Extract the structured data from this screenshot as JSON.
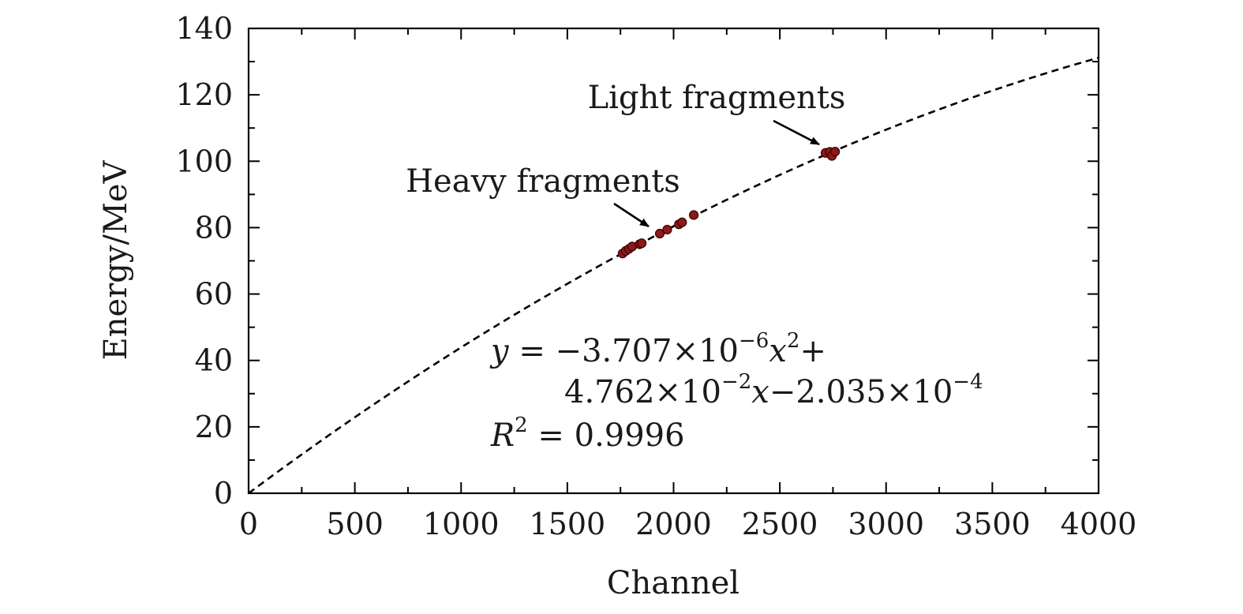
{
  "chart_data": {
    "type": "scatter",
    "xlabel": "Channel",
    "ylabel": "Energy/MeV",
    "xlim": [
      0,
      4000
    ],
    "ylim": [
      0,
      140
    ],
    "xticks": [
      "0",
      "500",
      "1000",
      "1500",
      "2000",
      "2500",
      "3000",
      "3500",
      "4000"
    ],
    "yticks": [
      "0",
      "20",
      "40",
      "60",
      "80",
      "100",
      "120",
      "140"
    ],
    "grid": false,
    "fit": {
      "style": "dashed",
      "color": "#000000",
      "a": -3.707e-06,
      "b": 0.04762,
      "c": -0.0002035
    },
    "points": {
      "color": "#8b1a1a",
      "x": [
        1760,
        1775,
        1790,
        1805,
        1840,
        1850,
        1935,
        1970,
        2025,
        2040,
        2095,
        2715,
        2735,
        2745,
        2760
      ],
      "y": [
        72.2,
        73.0,
        73.6,
        74.3,
        75.0,
        75.3,
        78.2,
        79.4,
        81.0,
        81.6,
        83.8,
        102.5,
        102.8,
        101.6,
        102.9
      ]
    },
    "annotations": [
      {
        "text": "Light fragments",
        "target_x": 2710,
        "target_y": 103
      },
      {
        "text": "Heavy fragments",
        "target_x": 1890,
        "target_y": 79
      }
    ],
    "equation": {
      "line1": {
        "y": "y",
        "eq": " = −3.707×10",
        "exp1": "−6",
        "x": "x",
        "exp2": "2",
        "plus": "+"
      },
      "line2": {
        "coef": "4.762×10",
        "exp": "−2",
        "x": "x",
        "rest": "−2.035×10",
        "exp2": "−4"
      },
      "line3": {
        "r": "R",
        "exp": "2",
        "val": " = 0.9996"
      }
    }
  }
}
